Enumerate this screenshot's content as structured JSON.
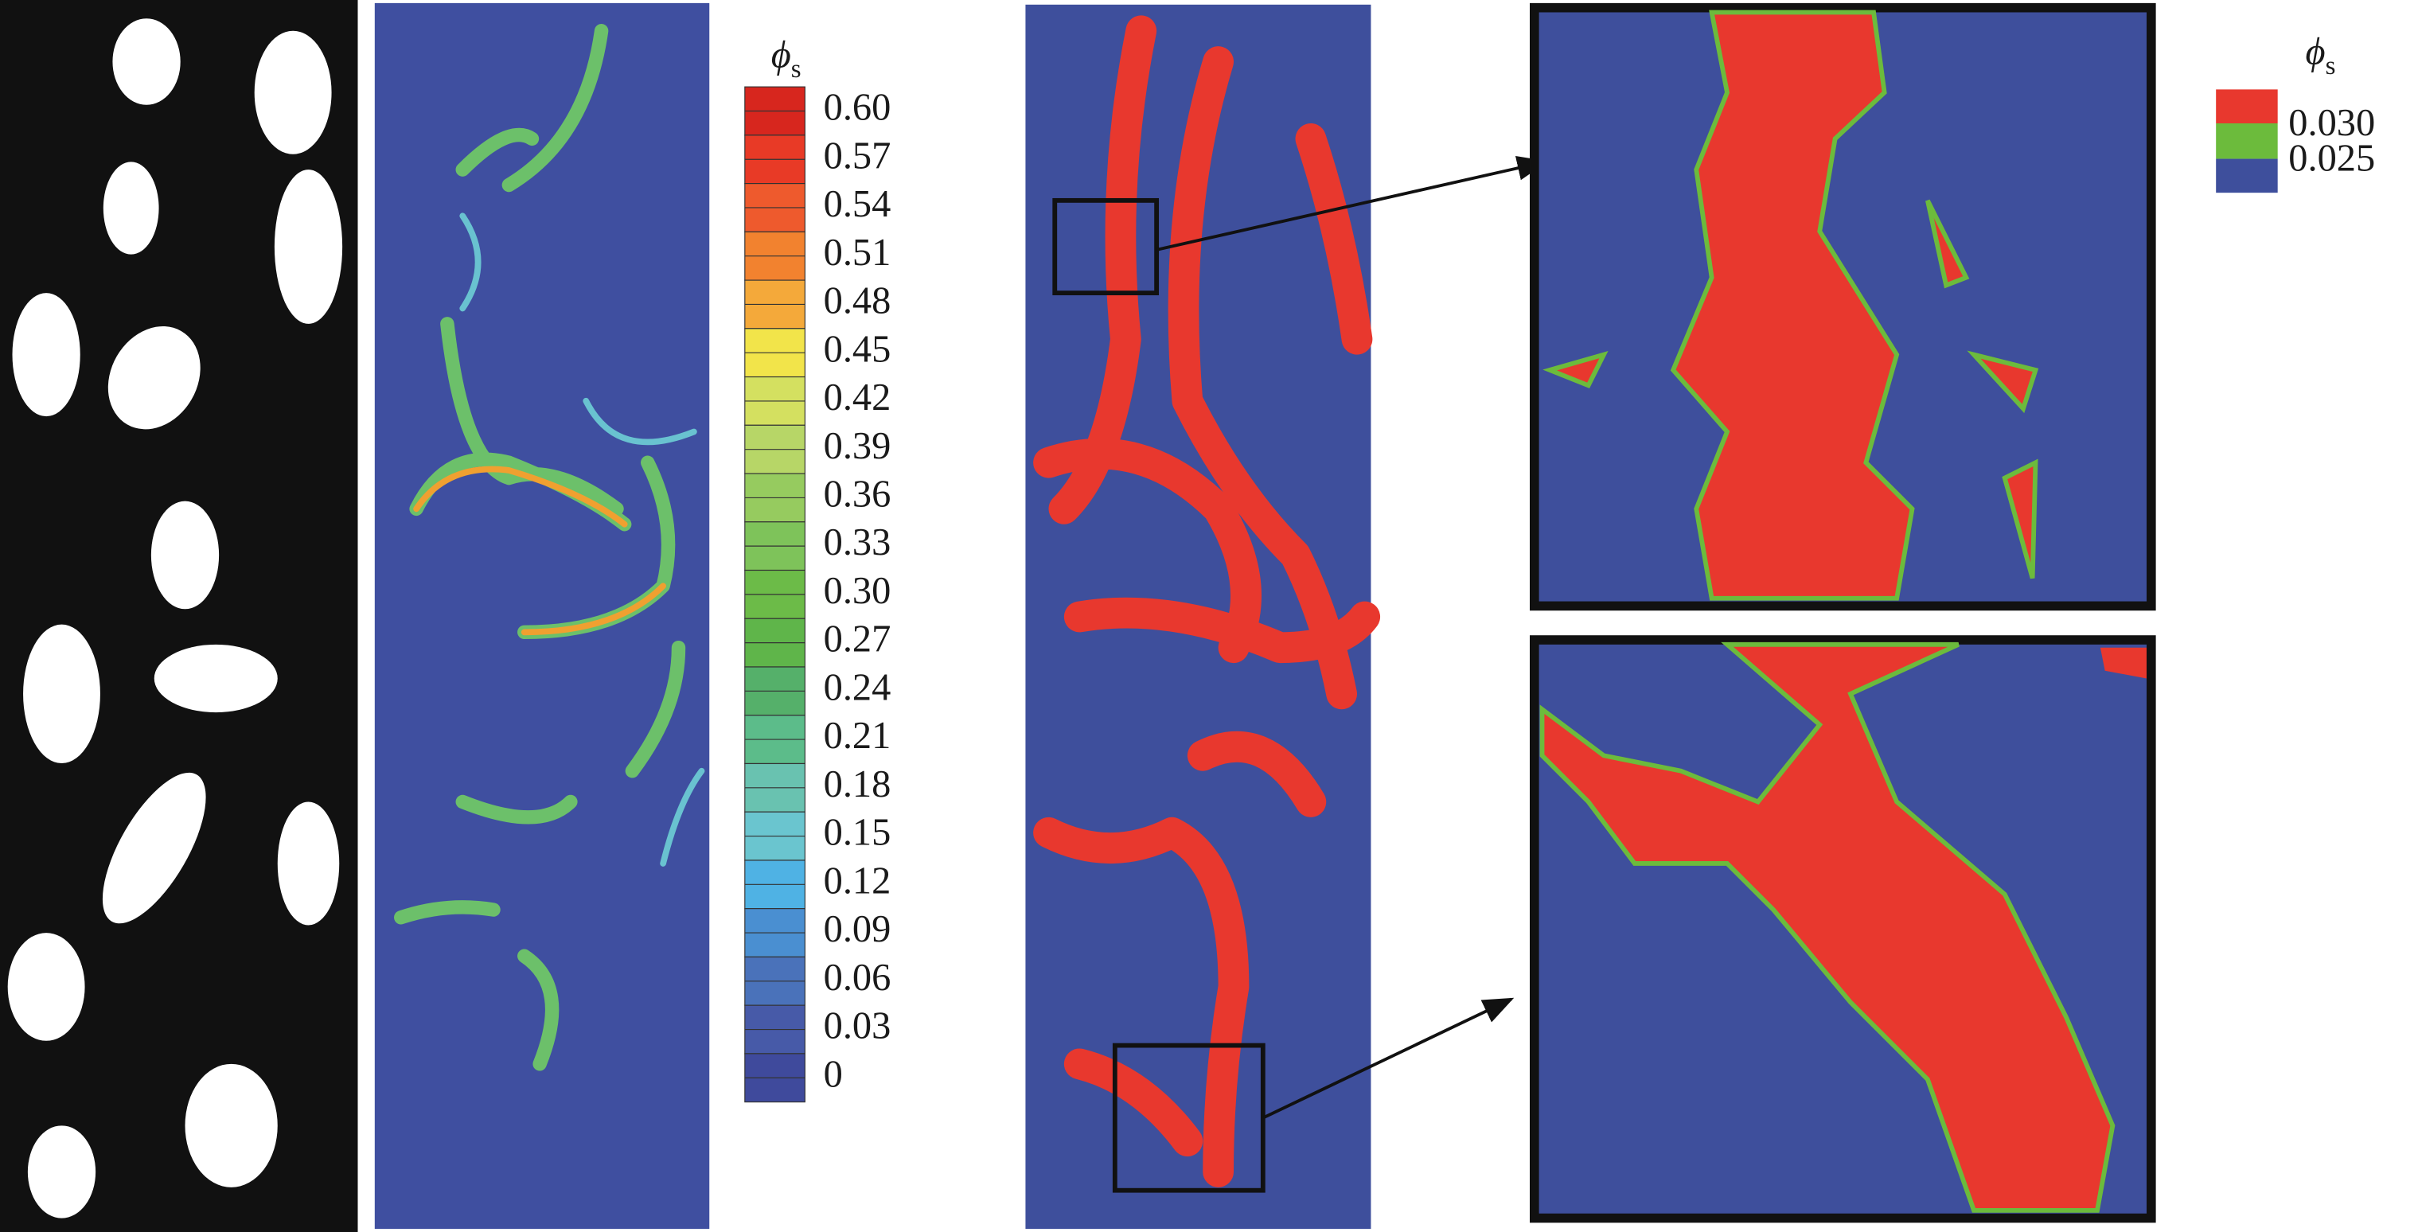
{
  "colorbar": {
    "title": "ϕ",
    "title_subscript": "s",
    "ticks": [
      {
        "value": 0.6,
        "label": "0.60"
      },
      {
        "value": 0.57,
        "label": "0.57"
      },
      {
        "value": 0.54,
        "label": "0.54"
      },
      {
        "value": 0.51,
        "label": "0.51"
      },
      {
        "value": 0.48,
        "label": "0.48"
      },
      {
        "value": 0.45,
        "label": "0.45"
      },
      {
        "value": 0.42,
        "label": "0.42"
      },
      {
        "value": 0.39,
        "label": "0.39"
      },
      {
        "value": 0.36,
        "label": "0.36"
      },
      {
        "value": 0.33,
        "label": "0.33"
      },
      {
        "value": 0.3,
        "label": "0.30"
      },
      {
        "value": 0.27,
        "label": "0.27"
      },
      {
        "value": 0.24,
        "label": "0.24"
      },
      {
        "value": 0.21,
        "label": "0.21"
      },
      {
        "value": 0.18,
        "label": "0.18"
      },
      {
        "value": 0.15,
        "label": "0.15"
      },
      {
        "value": 0.12,
        "label": "0.12"
      },
      {
        "value": 0.09,
        "label": "0.09"
      },
      {
        "value": 0.06,
        "label": "0.06"
      },
      {
        "value": 0.03,
        "label": "0.03"
      },
      0
    ],
    "colors": [
      "#d7261e",
      "#e83a26",
      "#ee5a2d",
      "#f2822f",
      "#f4a93a",
      "#f2e44a",
      "#d4e060",
      "#b7d667",
      "#96cb5f",
      "#7ec35a",
      "#6cbb48",
      "#5fb54a",
      "#55b06a",
      "#5cbc8a",
      "#69c2b0",
      "#6ac5cf",
      "#4fb2e4",
      "#4a8fd1",
      "#4a72ba",
      "#475aa8",
      "#3f4a9c"
    ]
  },
  "threshold_legend": {
    "title": "ϕ",
    "title_subscript": "s",
    "levels": [
      {
        "value": 0.03,
        "label": "0.030"
      },
      {
        "value": 0.025,
        "label": "0.025"
      }
    ],
    "colors": [
      "#e8382e",
      "#6cbb3c",
      "#3e4f9c"
    ]
  }
}
